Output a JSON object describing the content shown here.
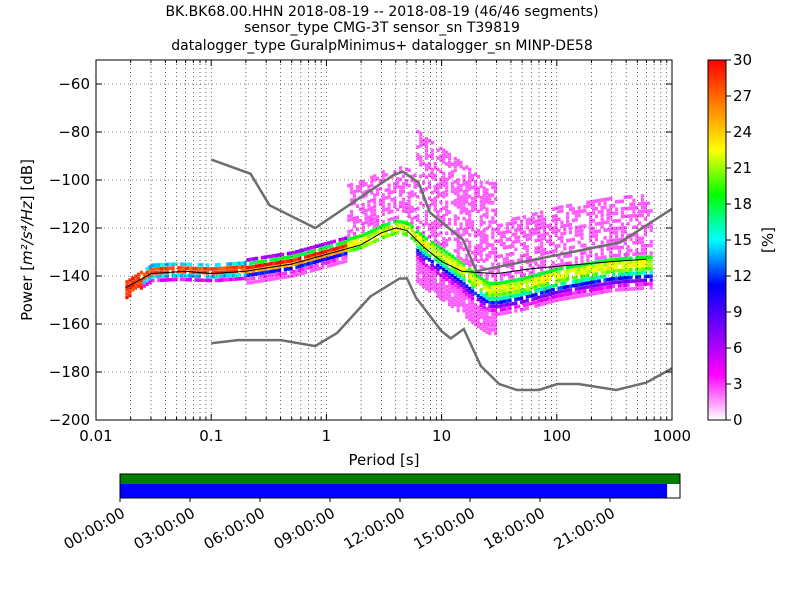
{
  "chart_data": {
    "type": "heatmap",
    "title_lines": [
      "BK.BK68.00.HHN   2018-08-19 -- 2018-08-19  (46/46 segments)",
      "sensor_type CMG-3T sensor_sn T39819",
      "datalogger_type GuralpMinimus+ datalogger_sn MINP-DE58"
    ],
    "xlabel": "Period [s]",
    "ylabel_prefix": "Power [",
    "ylabel_units": "m²/s⁴/Hz",
    "ylabel_suffix": "] [dB]",
    "x_scale": "log",
    "xlim": [
      0.01,
      1000
    ],
    "ylim": [
      -200,
      -50
    ],
    "x_ticks": [
      0.01,
      0.1,
      1,
      10,
      100,
      1000
    ],
    "x_tick_labels": [
      "0.01",
      "0.1",
      "1",
      "10",
      "100",
      "1000"
    ],
    "y_ticks": [
      -200,
      -180,
      -160,
      -140,
      -120,
      -100,
      -80,
      -60
    ],
    "y_tick_labels": [
      "−200",
      "−180",
      "−160",
      "−140",
      "−120",
      "−100",
      "−80",
      "−60"
    ],
    "grid": "dotted",
    "colorbar": {
      "label": "[%]",
      "range": [
        0,
        30
      ],
      "ticks": [
        0,
        3,
        6,
        9,
        12,
        15,
        18,
        21,
        24,
        27,
        30
      ],
      "tick_labels": [
        "0",
        "3",
        "6",
        "9",
        "12",
        "15",
        "18",
        "21",
        "24",
        "27",
        "30"
      ]
    },
    "noise_models": {
      "high_noise_model": [
        [
          0.1,
          -91.5
        ],
        [
          0.22,
          -97.4
        ],
        [
          0.32,
          -110.5
        ],
        [
          0.8,
          -120
        ],
        [
          3.8,
          -98
        ],
        [
          4.6,
          -96.5
        ],
        [
          6.3,
          -101
        ],
        [
          7.9,
          -113.5
        ],
        [
          15.4,
          -125
        ],
        [
          20,
          -138
        ],
        [
          354.8,
          -126
        ],
        [
          1000,
          -112
        ]
      ],
      "low_noise_model": [
        [
          0.1,
          -168
        ],
        [
          0.17,
          -166.7
        ],
        [
          0.4,
          -166.7
        ],
        [
          0.8,
          -169.2
        ],
        [
          1.24,
          -163.7
        ],
        [
          2.4,
          -148.6
        ],
        [
          4.3,
          -141.1
        ],
        [
          5,
          -141
        ],
        [
          6,
          -149
        ],
        [
          10,
          -163
        ],
        [
          12,
          -166
        ],
        [
          15.6,
          -162.1
        ],
        [
          21.9,
          -177.5
        ],
        [
          31.6,
          -185
        ],
        [
          45,
          -187.5
        ],
        [
          70,
          -187.5
        ],
        [
          101,
          -185
        ],
        [
          154,
          -185
        ],
        [
          328,
          -187.5
        ],
        [
          600,
          -184.4
        ],
        [
          1000,
          -178.5
        ]
      ]
    },
    "mean_psd": [
      [
        0.018,
        -145
      ],
      [
        0.03,
        -139
      ],
      [
        0.06,
        -138
      ],
      [
        0.1,
        -139
      ],
      [
        0.2,
        -138
      ],
      [
        0.5,
        -135
      ],
      [
        1,
        -131
      ],
      [
        2,
        -127
      ],
      [
        3,
        -122
      ],
      [
        4,
        -120
      ],
      [
        5,
        -121
      ],
      [
        7,
        -128
      ],
      [
        10,
        -134
      ],
      [
        15,
        -138
      ],
      [
        20,
        -138.5
      ],
      [
        30,
        -139
      ],
      [
        60,
        -137
      ],
      [
        100,
        -136
      ],
      [
        300,
        -134
      ],
      [
        600,
        -133
      ]
    ],
    "mode_psd": [
      [
        0.018,
        -145
      ],
      [
        0.03,
        -138
      ],
      [
        0.05,
        -137.5
      ],
      [
        0.1,
        -138
      ],
      [
        0.2,
        -137
      ],
      [
        0.5,
        -134
      ],
      [
        1,
        -130
      ],
      [
        2,
        -126
      ],
      [
        3,
        -122
      ],
      [
        4,
        -120
      ],
      [
        5,
        -121
      ],
      [
        7,
        -127
      ],
      [
        10,
        -132
      ],
      [
        15,
        -138
      ],
      [
        20,
        -143
      ],
      [
        25,
        -146
      ],
      [
        30,
        -146
      ],
      [
        50,
        -144
      ],
      [
        100,
        -140
      ],
      [
        300,
        -136
      ],
      [
        600,
        -135
      ]
    ],
    "time_axis": {
      "tick_labels": [
        "00:00:00",
        "03:00:00",
        "06:00:00",
        "09:00:00",
        "12:00:00",
        "15:00:00",
        "18:00:00",
        "21:00:00"
      ],
      "coverage_fraction": 0.977,
      "data_color": "#0000ff",
      "gap_color": "#ffffff",
      "top_strip_color": "#008000"
    }
  },
  "colors": {
    "noise_model": "#6e6e6e",
    "mean": "#000000",
    "colormap": [
      "#ffffff",
      "#ff00ff",
      "#7d00ff",
      "#0000ff",
      "#00ffff",
      "#00ff00",
      "#ffff00",
      "#ff8000",
      "#ff0000"
    ]
  }
}
